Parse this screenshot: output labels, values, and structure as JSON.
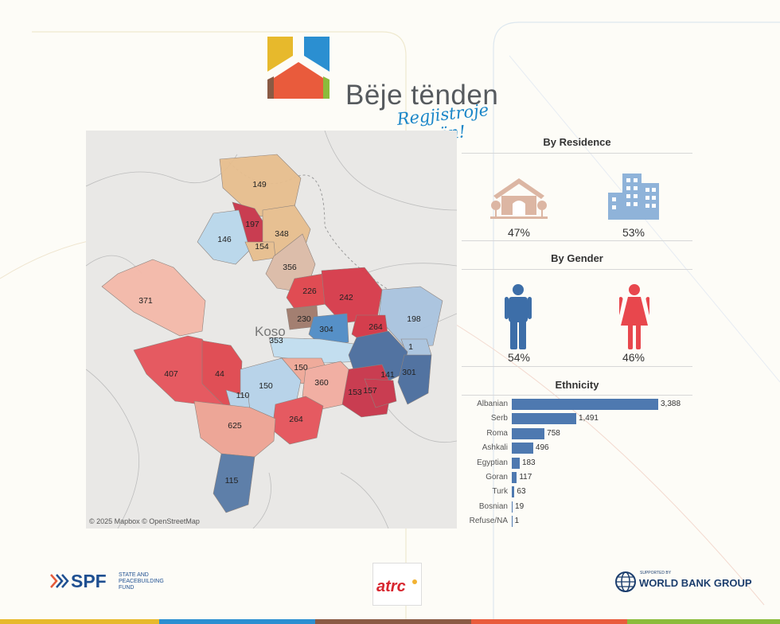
{
  "brand": {
    "name": "Bëje tënden",
    "tagline": "Regjistroje pronën!",
    "colors": [
      "#e7b92c",
      "#2b8fd1",
      "#e95b3c",
      "#8a5a44",
      "#8bbb3b"
    ]
  },
  "map": {
    "attribution": "© 2025 Mapbox  © OpenStreetMap",
    "country_label": "Koso",
    "regions": [
      {
        "value": "149",
        "color": "#e7be8e"
      },
      {
        "value": "197",
        "color": "#c8344a"
      },
      {
        "value": "348",
        "color": "#e7be8e"
      },
      {
        "value": "146",
        "color": "#b9d8ec"
      },
      {
        "value": "154",
        "color": "#e7be8e"
      },
      {
        "value": "356",
        "color": "#dcbba7"
      },
      {
        "value": "226",
        "color": "#e0444c"
      },
      {
        "value": "242",
        "color": "#d73a4a"
      },
      {
        "value": "371",
        "color": "#f4b9a9"
      },
      {
        "value": "198",
        "color": "#a9c4df"
      },
      {
        "value": "230",
        "color": "#a07a6b"
      },
      {
        "value": "304",
        "color": "#4f8cc6"
      },
      {
        "value": "264",
        "color": "#d33545"
      },
      {
        "value": "353",
        "color": "#c2def0"
      },
      {
        "value": "1",
        "color": "#a9c4df"
      },
      {
        "value": "407",
        "color": "#e5535a"
      },
      {
        "value": "44",
        "color": "#e0474f"
      },
      {
        "value": "150",
        "color": "#f0a898"
      },
      {
        "value": "141",
        "color": "#4a6d9e"
      },
      {
        "value": "301",
        "color": "#4a6d9e"
      },
      {
        "value": "360",
        "color": "#f2ada0"
      },
      {
        "value": "150",
        "color": "#b6d2ea"
      },
      {
        "value": "153",
        "color": "#c8344a"
      },
      {
        "value": "157",
        "color": "#c8344a"
      },
      {
        "value": "110",
        "color": "#b6d2ea"
      },
      {
        "value": "264",
        "color": "#e5535a"
      },
      {
        "value": "625",
        "color": "#eea393"
      },
      {
        "value": "115",
        "color": "#577aa6"
      }
    ]
  },
  "residence": {
    "title": "By Residence",
    "rural_pct": "47%",
    "urban_pct": "53%",
    "rural_icon": "house-icon",
    "urban_icon": "buildings-icon",
    "rural_color": "#dcb6a3",
    "urban_color": "#8fb3d9"
  },
  "gender": {
    "title": "By Gender",
    "male_pct": "54%",
    "female_pct": "46%",
    "male_icon": "man-icon",
    "female_icon": "woman-icon",
    "male_color": "#3d6ea8",
    "female_color": "#e8474d"
  },
  "ethnicity": {
    "title": "Ethnicity",
    "rows": [
      {
        "label": "Albanian",
        "value": 3388,
        "display": "3,388"
      },
      {
        "label": "Serb",
        "value": 1491,
        "display": "1,491"
      },
      {
        "label": "Roma",
        "value": 758,
        "display": "758"
      },
      {
        "label": "Ashkali",
        "value": 496,
        "display": "496"
      },
      {
        "label": "Egyptian",
        "value": 183,
        "display": "183"
      },
      {
        "label": "Goran",
        "value": 117,
        "display": "117"
      },
      {
        "label": "Turk",
        "value": 63,
        "display": "63"
      },
      {
        "label": "Bosnian",
        "value": 19,
        "display": "19"
      },
      {
        "label": "Refuse/NA",
        "value": 1,
        "display": "1"
      }
    ],
    "bar_color": "#4e79b0"
  },
  "footer": {
    "spf_abbr": "SPF",
    "spf_line1": "STATE AND",
    "spf_line2": "PEACEBUILDING",
    "spf_line3": "FUND",
    "atrc": "atrc",
    "wb_small": "SUPPORTED BY",
    "wb_name": "WORLD BANK GROUP"
  }
}
